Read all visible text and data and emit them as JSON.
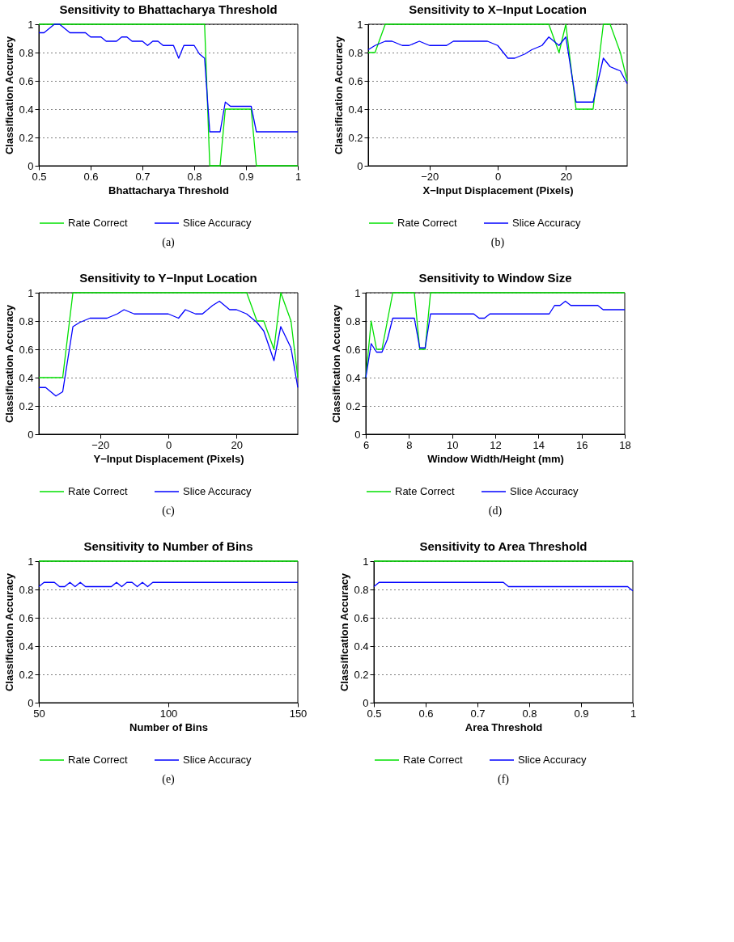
{
  "chart_data": [
    {
      "type": "line",
      "title": "Sensitivity to Bhattacharya Threshold",
      "xlabel": "Bhattacharya Threshold",
      "ylabel": "Classification Accuracy",
      "xlim": [
        0.5,
        1
      ],
      "xticks": [
        0.5,
        0.6,
        0.7,
        0.8,
        0.9,
        1
      ],
      "ylim": [
        0,
        1
      ],
      "yticks": [
        0,
        0.2,
        0.4,
        0.6,
        0.8,
        1
      ],
      "grid": "y",
      "legend": "bottom",
      "annotations": [
        "(a)"
      ],
      "series": [
        {
          "name": "Rate Correct",
          "color": "#00e000",
          "x": [
            0.5,
            0.82,
            0.83,
            0.85,
            0.86,
            0.91,
            0.92,
            1.0
          ],
          "values": [
            1,
            1,
            0,
            0,
            0.4,
            0.4,
            0,
            0
          ]
        },
        {
          "name": "Slice Accuracy",
          "color": "#0000ff",
          "x": [
            0.5,
            0.51,
            0.53,
            0.54,
            0.56,
            0.59,
            0.6,
            0.62,
            0.63,
            0.65,
            0.66,
            0.67,
            0.68,
            0.7,
            0.71,
            0.72,
            0.73,
            0.74,
            0.76,
            0.77,
            0.78,
            0.8,
            0.81,
            0.82,
            0.83,
            0.85,
            0.86,
            0.87,
            0.91,
            0.92,
            1.0
          ],
          "values": [
            0.94,
            0.94,
            1.0,
            1.0,
            0.94,
            0.94,
            0.91,
            0.91,
            0.88,
            0.88,
            0.91,
            0.91,
            0.88,
            0.88,
            0.85,
            0.88,
            0.88,
            0.85,
            0.85,
            0.76,
            0.85,
            0.85,
            0.79,
            0.76,
            0.24,
            0.24,
            0.45,
            0.42,
            0.42,
            0.24,
            0.24
          ]
        }
      ]
    },
    {
      "type": "line",
      "title": "Sensitivity to X−Input Location",
      "xlabel": "X−Input Displacement (Pixels)",
      "ylabel": "Classification Accuracy",
      "xlim": [
        -38,
        38
      ],
      "xticks": [
        {
          "value": -20,
          "label": "−20"
        },
        0,
        20
      ],
      "ylim": [
        0,
        1
      ],
      "yticks": [
        0,
        0.2,
        0.4,
        0.6,
        0.8,
        1
      ],
      "grid": "y",
      "legend": "bottom",
      "annotations": [
        "(b)"
      ],
      "series": [
        {
          "name": "Rate Correct",
          "color": "#00e000",
          "x": [
            -38,
            -36,
            -33,
            15,
            18,
            20,
            23,
            28,
            31,
            33,
            36,
            38
          ],
          "values": [
            0.8,
            0.8,
            1,
            1,
            0.8,
            1,
            0.4,
            0.4,
            1,
            1,
            0.8,
            0.6
          ]
        },
        {
          "name": "Slice Accuracy",
          "color": "#0000ff",
          "x": [
            -38,
            -36,
            -33,
            -31,
            -28,
            -26,
            -23,
            -20,
            -15,
            -13,
            -3,
            0,
            3,
            5,
            8,
            10,
            13,
            15,
            18,
            20,
            23,
            28,
            31,
            33,
            36,
            38
          ],
          "values": [
            0.82,
            0.85,
            0.88,
            0.88,
            0.85,
            0.85,
            0.88,
            0.85,
            0.85,
            0.88,
            0.88,
            0.85,
            0.76,
            0.76,
            0.79,
            0.82,
            0.85,
            0.91,
            0.85,
            0.91,
            0.45,
            0.45,
            0.76,
            0.7,
            0.67,
            0.58
          ]
        }
      ]
    },
    {
      "type": "line",
      "title": "Sensitivity to Y−Input Location",
      "xlabel": "Y−Input Displacement (Pixels)",
      "ylabel": "Classification Accuracy",
      "xlim": [
        -38,
        38
      ],
      "xticks": [
        {
          "value": -20,
          "label": "−20"
        },
        0,
        20
      ],
      "ylim": [
        0,
        1
      ],
      "yticks": [
        0,
        0.2,
        0.4,
        0.6,
        0.8,
        1
      ],
      "grid": "y",
      "legend": "bottom",
      "annotations": [
        "(c)"
      ],
      "series": [
        {
          "name": "Rate Correct",
          "color": "#00e000",
          "x": [
            -38,
            -31,
            -28,
            23,
            26,
            28,
            31,
            33,
            36,
            38
          ],
          "values": [
            0.4,
            0.4,
            1,
            1,
            0.8,
            0.8,
            0.6,
            1,
            0.8,
            0.4
          ]
        },
        {
          "name": "Slice Accuracy",
          "color": "#0000ff",
          "x": [
            -38,
            -36,
            -33,
            -31,
            -28,
            -26,
            -23,
            -18,
            -15,
            -13,
            -10,
            0,
            3,
            5,
            8,
            10,
            13,
            15,
            18,
            20,
            23,
            26,
            28,
            31,
            33,
            36,
            38
          ],
          "values": [
            0.33,
            0.33,
            0.27,
            0.3,
            0.76,
            0.79,
            0.82,
            0.82,
            0.85,
            0.88,
            0.85,
            0.85,
            0.82,
            0.88,
            0.85,
            0.85,
            0.91,
            0.94,
            0.88,
            0.88,
            0.85,
            0.79,
            0.73,
            0.52,
            0.76,
            0.61,
            0.33
          ]
        }
      ]
    },
    {
      "type": "line",
      "title": "Sensitivity to Window Size",
      "xlabel": "Window Width/Height (mm)",
      "ylabel": "Classification Accuracy",
      "xlim": [
        6,
        18
      ],
      "xticks": [
        6,
        8,
        10,
        12,
        14,
        16,
        18
      ],
      "ylim": [
        0,
        1
      ],
      "yticks": [
        0,
        0.2,
        0.4,
        0.6,
        0.8,
        1
      ],
      "grid": "y",
      "legend": "bottom",
      "annotations": [
        "(d)"
      ],
      "series": [
        {
          "name": "Rate Correct",
          "color": "#00e000",
          "x": [
            6,
            6.25,
            6.5,
            6.75,
            7.25,
            8.25,
            8.5,
            8.75,
            9,
            18
          ],
          "values": [
            0.4,
            0.8,
            0.6,
            0.6,
            1,
            1,
            0.6,
            0.6,
            1,
            1
          ]
        },
        {
          "name": "Slice Accuracy",
          "color": "#0000ff",
          "x": [
            6,
            6.25,
            6.5,
            6.75,
            7,
            7.25,
            8.25,
            8.5,
            8.75,
            9,
            11,
            11.25,
            11.5,
            11.75,
            14.5,
            14.75,
            15,
            15.25,
            15.5,
            16.75,
            17,
            18
          ],
          "values": [
            0.4,
            0.64,
            0.58,
            0.58,
            0.67,
            0.82,
            0.82,
            0.61,
            0.61,
            0.85,
            0.85,
            0.82,
            0.82,
            0.85,
            0.85,
            0.91,
            0.91,
            0.94,
            0.91,
            0.91,
            0.88,
            0.88
          ]
        }
      ]
    },
    {
      "type": "line",
      "title": "Sensitivity to Number of Bins",
      "xlabel": "Number of Bins",
      "ylabel": "Classification Accuracy",
      "xlim": [
        50,
        150
      ],
      "xticks": [
        50,
        100,
        150
      ],
      "ylim": [
        0,
        1
      ],
      "yticks": [
        0,
        0.2,
        0.4,
        0.6,
        0.8,
        1
      ],
      "grid": "y",
      "legend": "bottom",
      "annotations": [
        "(e)"
      ],
      "series": [
        {
          "name": "Rate Correct",
          "color": "#00e000",
          "x": [
            50,
            150
          ],
          "values": [
            1,
            1
          ]
        },
        {
          "name": "Slice Accuracy",
          "color": "#0000ff",
          "x": [
            50,
            52,
            56,
            58,
            60,
            62,
            64,
            66,
            68,
            78,
            80,
            82,
            84,
            86,
            88,
            90,
            92,
            94,
            150
          ],
          "values": [
            0.82,
            0.85,
            0.85,
            0.82,
            0.82,
            0.85,
            0.82,
            0.85,
            0.82,
            0.82,
            0.85,
            0.82,
            0.85,
            0.85,
            0.82,
            0.85,
            0.82,
            0.85,
            0.85
          ]
        }
      ]
    },
    {
      "type": "line",
      "title": "Sensitivity to Area Threshold",
      "xlabel": "Area Threshold",
      "ylabel": "Classification Accuracy",
      "xlim": [
        0.5,
        1
      ],
      "xticks": [
        0.5,
        0.6,
        0.7,
        0.8,
        0.9,
        1
      ],
      "ylim": [
        0,
        1
      ],
      "yticks": [
        0,
        0.2,
        0.4,
        0.6,
        0.8,
        1
      ],
      "grid": "y",
      "legend": "bottom",
      "annotations": [
        "(f)"
      ],
      "series": [
        {
          "name": "Rate Correct",
          "color": "#00e000",
          "x": [
            0.5,
            1
          ],
          "values": [
            1,
            1
          ]
        },
        {
          "name": "Slice Accuracy",
          "color": "#0000ff",
          "x": [
            0.5,
            0.51,
            0.75,
            0.76,
            0.99,
            1.0
          ],
          "values": [
            0.82,
            0.85,
            0.85,
            0.82,
            0.82,
            0.79
          ]
        }
      ]
    }
  ]
}
